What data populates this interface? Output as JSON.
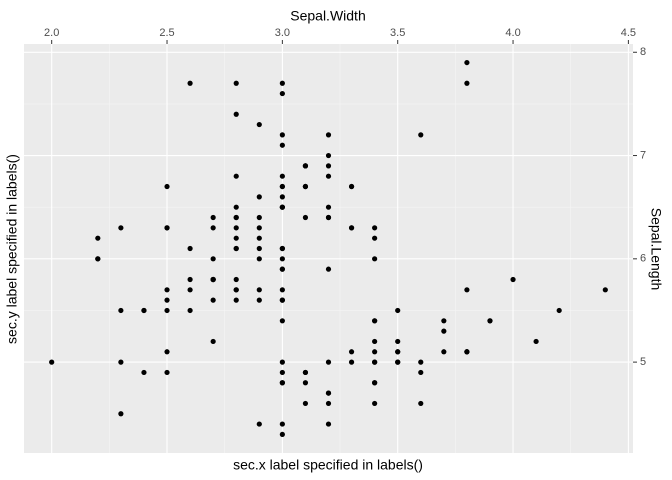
{
  "chart_data": {
    "type": "scatter",
    "x_label": "Sepal.Width",
    "y_label": "Sepal.Length",
    "x_label_bottom": "sec.x label specified in labels()",
    "y_label_left": "sec.y label specified in labels()",
    "x_axis_position": "top",
    "y_axis_position": "right",
    "grid": true,
    "color": "#000000",
    "xlim": [
      1.88,
      4.52
    ],
    "ylim": [
      4.12,
      8.08
    ],
    "xticks": [
      {
        "value": 2.0,
        "label": "2.0"
      },
      2.5,
      {
        "value": 3.0,
        "label": "3.0"
      },
      3.5,
      {
        "value": 4.0,
        "label": "4.0"
      },
      4.5
    ],
    "yticks": [
      5,
      6,
      7,
      8
    ],
    "x": [
      3.5,
      3.0,
      3.2,
      3.1,
      3.6,
      3.9,
      3.4,
      3.4,
      2.9,
      3.1,
      3.7,
      3.4,
      3.0,
      3.0,
      4.0,
      4.4,
      3.9,
      3.5,
      3.8,
      3.8,
      3.4,
      3.7,
      3.6,
      3.3,
      3.4,
      3.0,
      3.4,
      3.5,
      3.4,
      3.2,
      3.1,
      3.4,
      4.1,
      4.2,
      3.1,
      3.2,
      3.5,
      3.6,
      3.0,
      3.4,
      3.5,
      2.3,
      3.2,
      3.5,
      3.8,
      3.0,
      3.8,
      3.2,
      3.7,
      3.3,
      3.2,
      3.2,
      3.1,
      2.3,
      2.8,
      2.8,
      3.3,
      2.4,
      2.9,
      2.7,
      2.0,
      3.0,
      2.2,
      2.9,
      2.9,
      3.1,
      3.0,
      2.7,
      2.2,
      2.5,
      3.2,
      2.8,
      2.5,
      2.8,
      2.9,
      3.0,
      2.8,
      3.0,
      2.9,
      2.6,
      2.4,
      2.4,
      2.7,
      2.7,
      3.0,
      3.4,
      3.1,
      2.3,
      3.0,
      2.5,
      2.6,
      3.0,
      2.6,
      2.3,
      2.7,
      3.0,
      2.9,
      2.9,
      2.5,
      2.8,
      3.3,
      2.7,
      3.0,
      2.9,
      3.0,
      3.0,
      2.5,
      2.9,
      2.5,
      3.6,
      3.2,
      2.7,
      3.0,
      2.5,
      2.8,
      3.2,
      3.0,
      3.8,
      2.6,
      2.2,
      3.2,
      2.8,
      2.8,
      2.7,
      3.3,
      3.2,
      2.8,
      3.0,
      2.8,
      3.0,
      2.8,
      3.8,
      2.8,
      2.8,
      2.6,
      3.0,
      3.4,
      3.1,
      3.0,
      3.1,
      3.1,
      3.1,
      2.7,
      3.2,
      3.3,
      3.0,
      2.5,
      3.0,
      3.4,
      3.0
    ],
    "values": [
      5.1,
      4.9,
      4.7,
      4.6,
      5.0,
      5.4,
      4.6,
      5.0,
      4.4,
      4.9,
      5.4,
      4.8,
      4.8,
      4.3,
      5.8,
      5.7,
      5.4,
      5.1,
      5.7,
      5.1,
      5.4,
      5.1,
      4.6,
      5.1,
      4.8,
      5.0,
      5.0,
      5.2,
      5.2,
      4.7,
      4.8,
      5.4,
      5.2,
      5.5,
      4.9,
      5.0,
      5.5,
      4.9,
      4.4,
      5.1,
      5.0,
      4.5,
      4.4,
      5.0,
      5.1,
      4.8,
      5.1,
      4.6,
      5.3,
      5.0,
      7.0,
      6.4,
      6.9,
      5.5,
      6.5,
      5.7,
      6.3,
      4.9,
      6.6,
      5.2,
      5.0,
      5.9,
      6.0,
      6.1,
      5.6,
      6.7,
      5.6,
      5.8,
      6.2,
      5.6,
      5.9,
      6.1,
      6.3,
      6.1,
      6.4,
      6.6,
      6.8,
      6.7,
      6.0,
      5.7,
      5.5,
      5.5,
      5.8,
      6.0,
      5.4,
      6.0,
      6.7,
      6.3,
      5.6,
      5.5,
      5.5,
      6.1,
      5.8,
      5.0,
      5.6,
      5.7,
      5.7,
      6.2,
      5.1,
      5.7,
      6.3,
      5.8,
      7.1,
      6.3,
      6.5,
      7.6,
      4.9,
      7.3,
      6.7,
      7.2,
      6.5,
      6.4,
      6.8,
      5.7,
      5.8,
      6.4,
      6.5,
      7.7,
      7.7,
      6.0,
      6.9,
      5.6,
      7.7,
      6.3,
      6.7,
      7.2,
      6.2,
      6.1,
      6.4,
      7.2,
      7.4,
      7.9,
      6.4,
      6.3,
      6.1,
      7.7,
      6.3,
      6.4,
      6.0,
      6.9,
      6.7,
      6.9,
      5.8,
      6.8,
      6.7,
      6.7,
      6.3,
      6.5,
      6.2,
      5.9
    ]
  }
}
